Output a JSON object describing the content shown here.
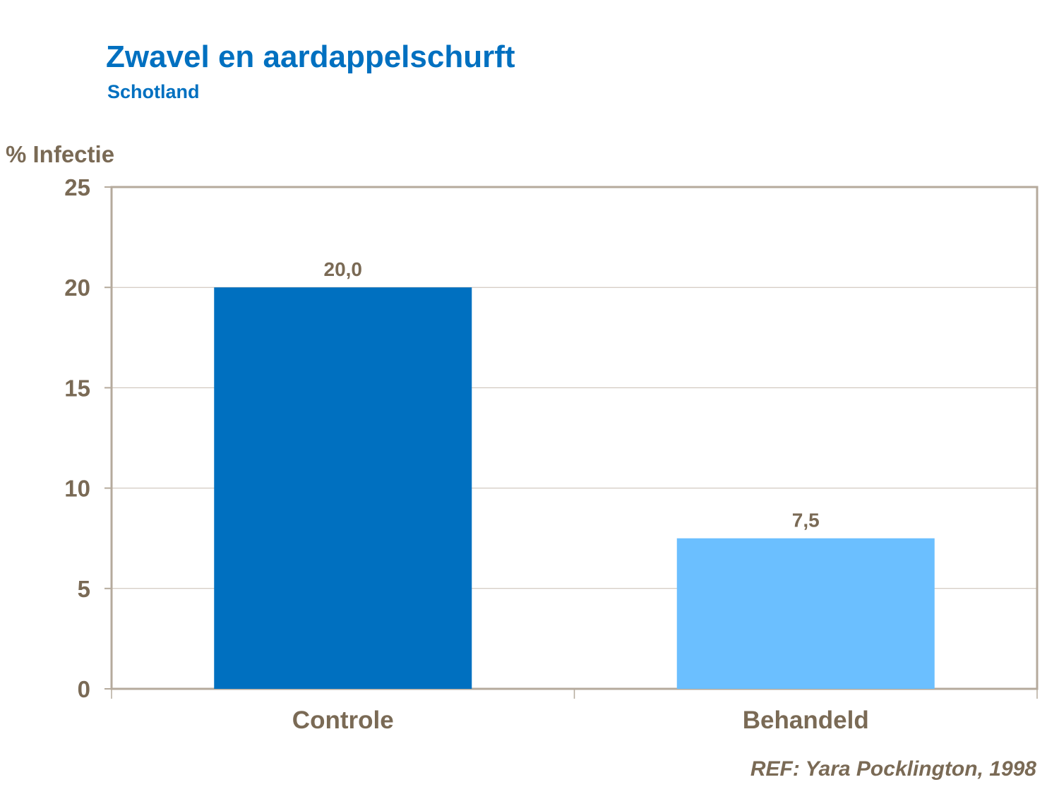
{
  "chart_data": {
    "type": "bar",
    "title": "Zwavel en aardappelschurft",
    "subtitle": "Schotland",
    "ylabel": "% Infectie",
    "xlabel": "",
    "categories": [
      "Controle",
      "Behandeld"
    ],
    "values": [
      20.0,
      7.5
    ],
    "data_labels": [
      "20,0",
      "7,5"
    ],
    "bar_colors": [
      "#0070c0",
      "#6bbfff"
    ],
    "ylim": [
      0,
      25
    ],
    "yticks": [
      0,
      5,
      10,
      15,
      20,
      25
    ],
    "grid": true,
    "legend": "none",
    "source": "REF: Yara Pocklington,  1998"
  },
  "colors": {
    "title": "#0070c0",
    "text": "#7a6a55",
    "axis": "#b5aa9c",
    "grid": "#c8beb2"
  }
}
